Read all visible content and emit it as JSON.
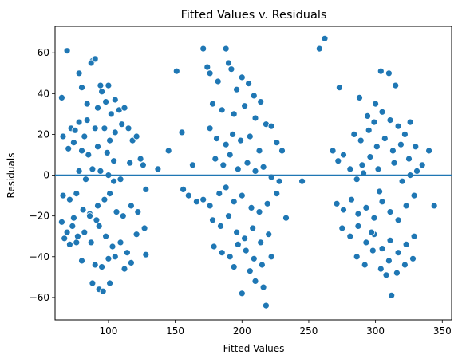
{
  "chart_data": {
    "type": "scatter",
    "title": "Fitted Values v. Residuals",
    "xlabel": "Fitted Values",
    "ylabel": "Residuals",
    "xlim": [
      60,
      357
    ],
    "ylim": [
      -71,
      73
    ],
    "xticks": [
      100,
      150,
      200,
      250,
      300,
      350
    ],
    "yticks": [
      -60,
      -40,
      -20,
      0,
      20,
      40,
      60
    ],
    "reference_line": {
      "y": 0,
      "color": "#1f77b4"
    },
    "point_color": "#1f77b4",
    "grid": false,
    "clusters": [
      {
        "x_center": 96,
        "x_spread": 18,
        "count": 150
      },
      {
        "x_center": 200,
        "x_spread": 18,
        "count": 150
      },
      {
        "x_center": 303,
        "x_spread": 17,
        "count": 150
      }
    ],
    "points": [
      [
        69,
        61
      ],
      [
        65,
        38
      ],
      [
        88,
        56
      ],
      [
        90,
        57
      ],
      [
        87,
        55
      ],
      [
        100,
        44
      ],
      [
        94,
        44
      ],
      [
        78,
        50
      ],
      [
        80,
        43
      ],
      [
        105,
        37
      ],
      [
        108,
        32
      ],
      [
        112,
        33
      ],
      [
        95,
        41
      ],
      [
        102,
        30
      ],
      [
        84,
        35
      ],
      [
        72,
        23
      ],
      [
        75,
        22
      ],
      [
        78,
        26
      ],
      [
        82,
        19
      ],
      [
        90,
        23
      ],
      [
        97,
        23
      ],
      [
        101,
        17
      ],
      [
        105,
        21
      ],
      [
        110,
        25
      ],
      [
        115,
        23
      ],
      [
        118,
        17
      ],
      [
        121,
        19
      ],
      [
        124,
        8
      ],
      [
        126,
        5
      ],
      [
        116,
        6
      ],
      [
        66,
        19
      ],
      [
        70,
        13
      ],
      [
        74,
        16
      ],
      [
        80,
        12
      ],
      [
        85,
        10
      ],
      [
        92,
        14
      ],
      [
        99,
        11
      ],
      [
        104,
        7
      ],
      [
        78,
        2
      ],
      [
        83,
        -2
      ],
      [
        88,
        3
      ],
      [
        94,
        2
      ],
      [
        100,
        0
      ],
      [
        104,
        -3
      ],
      [
        109,
        -2
      ],
      [
        66,
        -10
      ],
      [
        71,
        -12
      ],
      [
        76,
        -9
      ],
      [
        81,
        -17
      ],
      [
        86,
        -19
      ],
      [
        92,
        -15
      ],
      [
        97,
        -12
      ],
      [
        101,
        -9
      ],
      [
        106,
        -18
      ],
      [
        111,
        -20
      ],
      [
        117,
        -15
      ],
      [
        122,
        -18
      ],
      [
        128,
        -7
      ],
      [
        65,
        -23
      ],
      [
        69,
        -28
      ],
      [
        73,
        -25
      ],
      [
        77,
        -30
      ],
      [
        82,
        -28
      ],
      [
        87,
        -33
      ],
      [
        93,
        -25
      ],
      [
        98,
        -30
      ],
      [
        103,
        -35
      ],
      [
        109,
        -33
      ],
      [
        114,
        -38
      ],
      [
        121,
        -29
      ],
      [
        127,
        -26
      ],
      [
        71,
        -34
      ],
      [
        76,
        -33
      ],
      [
        80,
        -42
      ],
      [
        90,
        -44
      ],
      [
        95,
        -45
      ],
      [
        100,
        -41
      ],
      [
        105,
        -40
      ],
      [
        112,
        -46
      ],
      [
        117,
        -43
      ],
      [
        128,
        -39
      ],
      [
        88,
        -53
      ],
      [
        93,
        -56
      ],
      [
        96,
        -57
      ],
      [
        101,
        -53
      ],
      [
        67,
        -31
      ],
      [
        74,
        -21
      ],
      [
        86,
        -20
      ],
      [
        91,
        -22
      ],
      [
        84,
        27
      ],
      [
        92,
        33
      ],
      [
        98,
        36
      ],
      [
        137,
        3
      ],
      [
        145,
        12
      ],
      [
        155,
        21
      ],
      [
        163,
        5
      ],
      [
        151,
        51
      ],
      [
        174,
        53
      ],
      [
        176,
        50
      ],
      [
        188,
        62
      ],
      [
        190,
        55
      ],
      [
        192,
        52
      ],
      [
        200,
        48
      ],
      [
        205,
        45
      ],
      [
        171,
        62
      ],
      [
        182,
        46
      ],
      [
        196,
        42
      ],
      [
        209,
        39
      ],
      [
        214,
        36
      ],
      [
        178,
        35
      ],
      [
        185,
        32
      ],
      [
        194,
        30
      ],
      [
        202,
        34
      ],
      [
        210,
        28
      ],
      [
        218,
        25
      ],
      [
        222,
        24
      ],
      [
        176,
        23
      ],
      [
        181,
        18
      ],
      [
        188,
        15
      ],
      [
        193,
        20
      ],
      [
        199,
        17
      ],
      [
        206,
        19
      ],
      [
        213,
        12
      ],
      [
        226,
        16
      ],
      [
        230,
        12
      ],
      [
        180,
        8
      ],
      [
        186,
        5
      ],
      [
        191,
        10
      ],
      [
        197,
        3
      ],
      [
        204,
        6
      ],
      [
        210,
        2
      ],
      [
        216,
        4
      ],
      [
        222,
        -1
      ],
      [
        228,
        -3
      ],
      [
        156,
        -7
      ],
      [
        160,
        -10
      ],
      [
        166,
        -13
      ],
      [
        171,
        -12
      ],
      [
        176,
        -15
      ],
      [
        183,
        -9
      ],
      [
        188,
        -6
      ],
      [
        194,
        -13
      ],
      [
        200,
        -10
      ],
      [
        207,
        -16
      ],
      [
        213,
        -18
      ],
      [
        219,
        -14
      ],
      [
        226,
        -9
      ],
      [
        233,
        -21
      ],
      [
        245,
        -3
      ],
      [
        178,
        -22
      ],
      [
        184,
        -25
      ],
      [
        190,
        -20
      ],
      [
        196,
        -28
      ],
      [
        202,
        -31
      ],
      [
        208,
        -26
      ],
      [
        214,
        -33
      ],
      [
        220,
        -29
      ],
      [
        179,
        -35
      ],
      [
        185,
        -38
      ],
      [
        191,
        -40
      ],
      [
        197,
        -34
      ],
      [
        203,
        -37
      ],
      [
        209,
        -41
      ],
      [
        215,
        -44
      ],
      [
        222,
        -40
      ],
      [
        200,
        -58
      ],
      [
        210,
        -52
      ],
      [
        216,
        -55
      ],
      [
        218,
        -64
      ],
      [
        206,
        -47
      ],
      [
        194,
        -45
      ],
      [
        258,
        62
      ],
      [
        262,
        67
      ],
      [
        268,
        12
      ],
      [
        272,
        7
      ],
      [
        276,
        10
      ],
      [
        281,
        3
      ],
      [
        286,
        -2
      ],
      [
        291,
        1
      ],
      [
        273,
        43
      ],
      [
        288,
        38
      ],
      [
        300,
        35
      ],
      [
        304,
        51
      ],
      [
        310,
        50
      ],
      [
        315,
        44
      ],
      [
        294,
        29
      ],
      [
        299,
        26
      ],
      [
        305,
        31
      ],
      [
        311,
        27
      ],
      [
        317,
        24
      ],
      [
        322,
        20
      ],
      [
        326,
        26
      ],
      [
        284,
        20
      ],
      [
        289,
        17
      ],
      [
        295,
        22
      ],
      [
        301,
        14
      ],
      [
        307,
        18
      ],
      [
        313,
        12
      ],
      [
        319,
        15
      ],
      [
        325,
        8
      ],
      [
        330,
        14
      ],
      [
        335,
        5
      ],
      [
        340,
        12
      ],
      [
        331,
        2
      ],
      [
        271,
        -14
      ],
      [
        276,
        -17
      ],
      [
        282,
        -12
      ],
      [
        287,
        -19
      ],
      [
        293,
        -16
      ],
      [
        299,
        -21
      ],
      [
        305,
        -13
      ],
      [
        311,
        -18
      ],
      [
        317,
        -22
      ],
      [
        323,
        -15
      ],
      [
        329,
        -10
      ],
      [
        344,
        -15
      ],
      [
        275,
        -26
      ],
      [
        281,
        -30
      ],
      [
        287,
        -25
      ],
      [
        293,
        -33
      ],
      [
        299,
        -29
      ],
      [
        305,
        -36
      ],
      [
        311,
        -32
      ],
      [
        317,
        -38
      ],
      [
        323,
        -34
      ],
      [
        329,
        -30
      ],
      [
        286,
        -40
      ],
      [
        292,
        -44
      ],
      [
        298,
        -37
      ],
      [
        304,
        -46
      ],
      [
        310,
        -42
      ],
      [
        316,
        -48
      ],
      [
        322,
        -44
      ],
      [
        328,
        -41
      ],
      [
        312,
        -59
      ],
      [
        308,
        -49
      ],
      [
        297,
        -28
      ],
      [
        303,
        -8
      ],
      [
        290,
        5
      ],
      [
        296,
        9
      ],
      [
        302,
        3
      ],
      [
        314,
        6
      ],
      [
        320,
        -3
      ],
      [
        326,
        0
      ]
    ]
  }
}
